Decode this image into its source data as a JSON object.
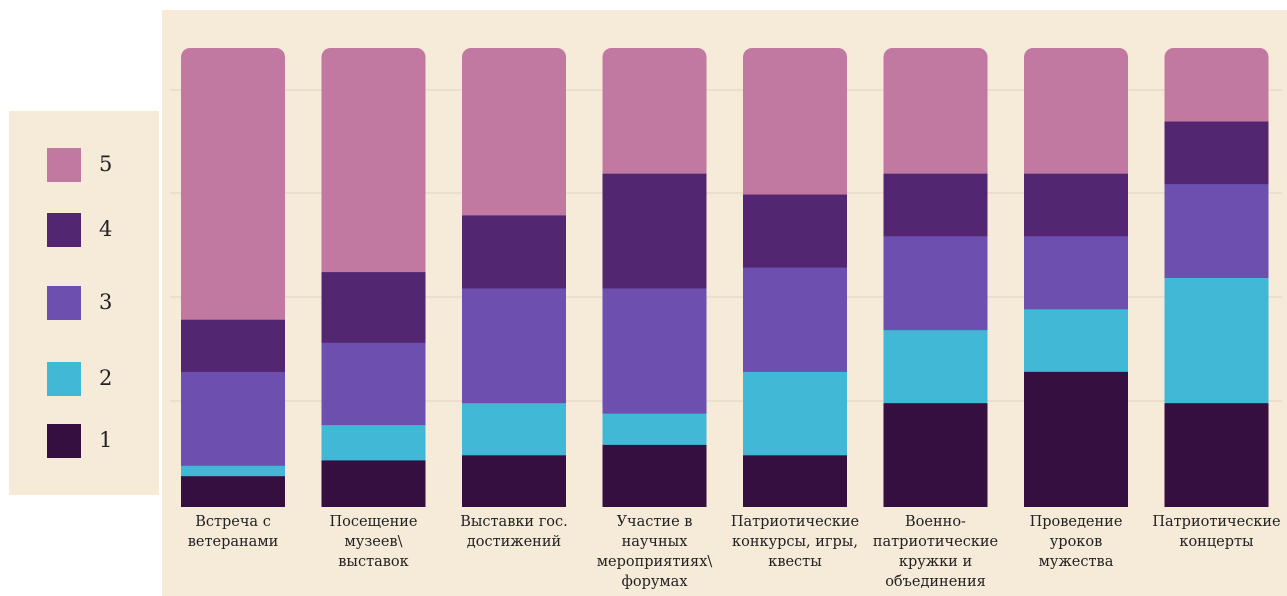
{
  "chart_data": {
    "type": "bar",
    "stacked": true,
    "normalized": true,
    "categories": [
      "Встреча с ветеранами",
      "Посещение музеев\\ выставок",
      "Выставки гос. достижений",
      "Участие в научных мероприятиях\\ форумах",
      "Патриотические конкурсы, игры, квесты",
      "Военно-патриотические кружки и объединения",
      "Проведение уроков мужества",
      "Патриотические концерты"
    ],
    "series": [
      {
        "name": "1",
        "color": "#340f3f",
        "values": [
          3,
          4,
          5,
          6,
          5,
          10,
          13,
          10
        ]
      },
      {
        "name": "2",
        "color": "#40b8d6",
        "values": [
          1,
          3,
          5,
          3,
          8,
          7,
          6,
          12
        ]
      },
      {
        "name": "3",
        "color": "#6c4fae",
        "values": [
          9,
          7,
          11,
          12,
          10,
          9,
          7,
          9
        ]
      },
      {
        "name": "4",
        "color": "#522670",
        "values": [
          5,
          6,
          7,
          11,
          7,
          6,
          6,
          6
        ]
      },
      {
        "name": "5",
        "color": "#c279a1",
        "values": [
          26,
          19,
          16,
          12,
          14,
          12,
          12,
          7
        ]
      }
    ],
    "legend_order": [
      "5",
      "4",
      "3",
      "2",
      "1"
    ],
    "legend_position": "left",
    "grid": true,
    "title": "",
    "xlabel": "",
    "ylabel": ""
  }
}
